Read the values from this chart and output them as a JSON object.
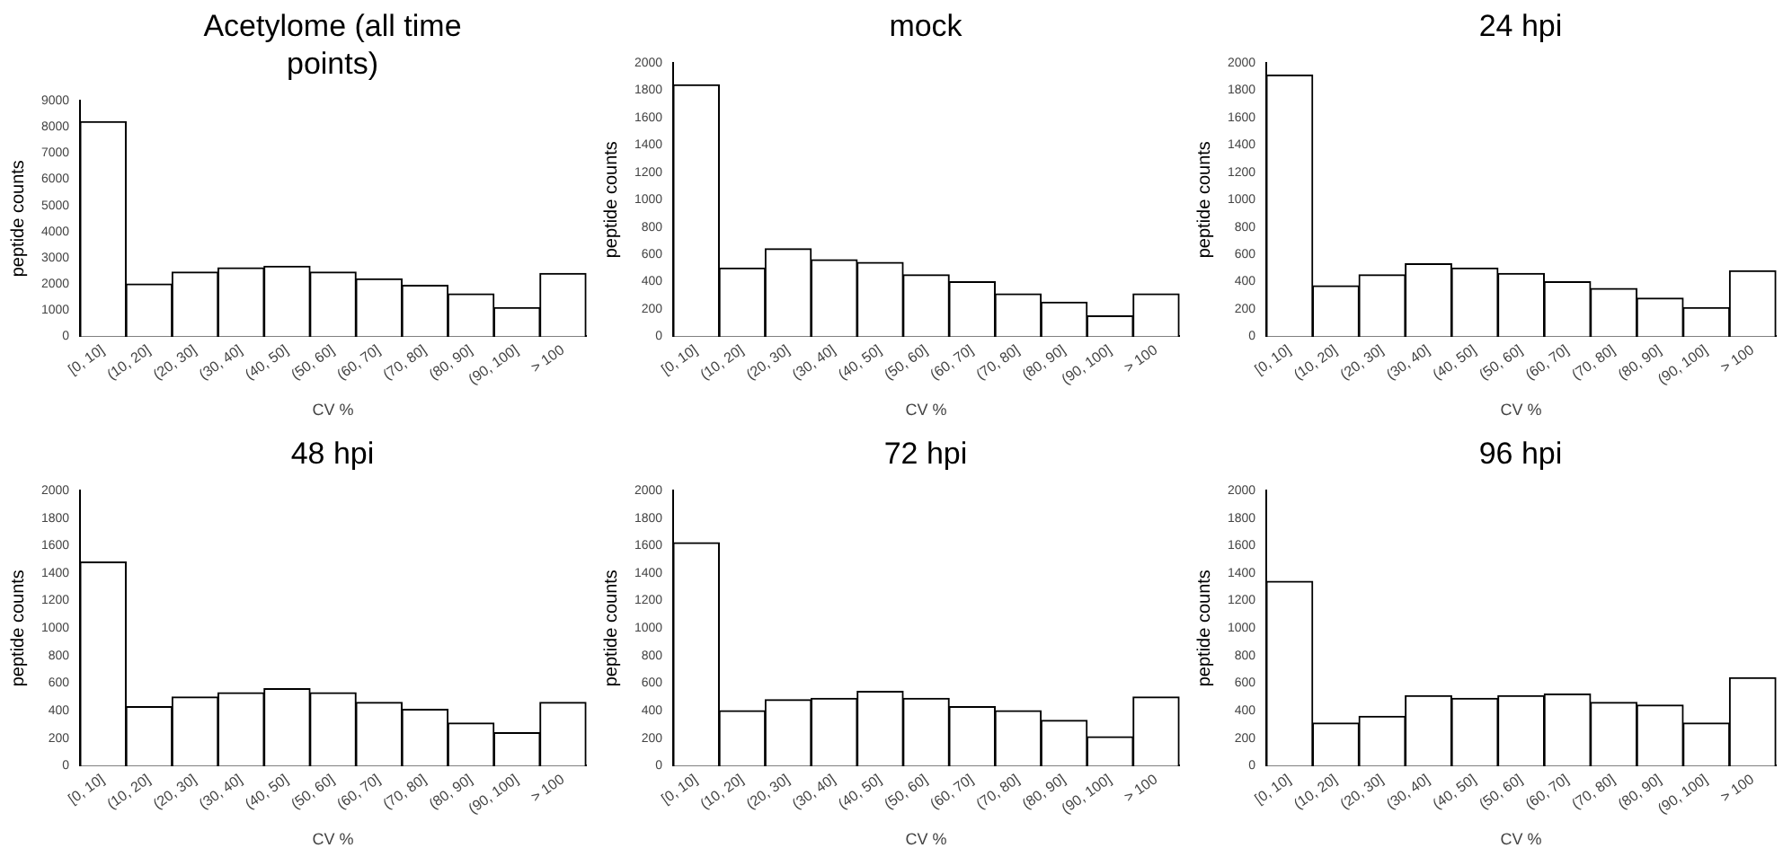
{
  "chart_data": [
    {
      "type": "bar",
      "title": "Acetylome (all time points)",
      "xlabel": "CV %",
      "ylabel": "peptide counts",
      "categories": [
        "[0, 10]",
        "(10, 20]",
        "(20, 30]",
        "(30, 40]",
        "(40, 50]",
        "(50, 60]",
        "(60, 70]",
        "(70, 80]",
        "(80, 90]",
        "(90, 100]",
        "> 100"
      ],
      "color": "#ffffff",
      "grid": false,
      "legend": false,
      "ylim": [
        0,
        9000
      ],
      "yticks": [
        0,
        1000,
        2000,
        3000,
        4000,
        5000,
        6000,
        7000,
        8000,
        9000
      ],
      "values": [
        8200,
        2000,
        2450,
        2620,
        2680,
        2450,
        2200,
        1950,
        1620,
        1100,
        2400
      ]
    },
    {
      "type": "bar",
      "title": "mock",
      "xlabel": "CV %",
      "ylabel": "peptide counts",
      "categories": [
        "[0, 10]",
        "(10, 20]",
        "(20, 30]",
        "(30, 40]",
        "(40, 50]",
        "(50, 60]",
        "(60, 70]",
        "(70, 80]",
        "(80, 90]",
        "(90, 100]",
        "> 100"
      ],
      "color": "#ffffff",
      "grid": false,
      "legend": false,
      "ylim": [
        0,
        2000
      ],
      "yticks": [
        0,
        200,
        400,
        600,
        800,
        1000,
        1200,
        1400,
        1600,
        1800,
        2000
      ],
      "values": [
        1840,
        500,
        640,
        560,
        540,
        450,
        400,
        310,
        250,
        150,
        310
      ]
    },
    {
      "type": "bar",
      "title": "24 hpi",
      "xlabel": "CV %",
      "ylabel": "peptide counts",
      "categories": [
        "[0, 10]",
        "(10, 20]",
        "(20, 30]",
        "(30, 40]",
        "(40, 50]",
        "(50, 60]",
        "(60, 70]",
        "(70, 80]",
        "(80, 90]",
        "(90, 100]",
        "> 100"
      ],
      "color": "#ffffff",
      "grid": false,
      "legend": false,
      "ylim": [
        0,
        2000
      ],
      "yticks": [
        0,
        200,
        400,
        600,
        800,
        1000,
        1200,
        1400,
        1600,
        1800,
        2000
      ],
      "values": [
        1910,
        370,
        450,
        530,
        500,
        460,
        400,
        350,
        280,
        210,
        480
      ]
    },
    {
      "type": "bar",
      "title": "48 hpi",
      "xlabel": "CV %",
      "ylabel": "peptide counts",
      "categories": [
        "[0, 10]",
        "(10, 20]",
        "(20, 30]",
        "(30, 40]",
        "(40, 50]",
        "(50, 60]",
        "(60, 70]",
        "(70, 80]",
        "(80, 90]",
        "(90, 100]",
        "> 100"
      ],
      "color": "#ffffff",
      "grid": false,
      "legend": false,
      "ylim": [
        0,
        2000
      ],
      "yticks": [
        0,
        200,
        400,
        600,
        800,
        1000,
        1200,
        1400,
        1600,
        1800,
        2000
      ],
      "values": [
        1480,
        430,
        500,
        530,
        560,
        530,
        460,
        410,
        310,
        240,
        460
      ]
    },
    {
      "type": "bar",
      "title": "72 hpi",
      "xlabel": "CV %",
      "ylabel": "peptide counts",
      "categories": [
        "[0, 10]",
        "(10, 20]",
        "(20, 30]",
        "(30, 40]",
        "(40, 50]",
        "(50, 60]",
        "(60, 70]",
        "(70, 80]",
        "(80, 90]",
        "(90, 100]",
        "> 100"
      ],
      "color": "#ffffff",
      "grid": false,
      "legend": false,
      "ylim": [
        0,
        2000
      ],
      "yticks": [
        0,
        200,
        400,
        600,
        800,
        1000,
        1200,
        1400,
        1600,
        1800,
        2000
      ],
      "values": [
        1620,
        400,
        480,
        490,
        540,
        490,
        430,
        400,
        330,
        210,
        500
      ]
    },
    {
      "type": "bar",
      "title": "96 hpi",
      "xlabel": "CV %",
      "ylabel": "peptide counts",
      "categories": [
        "[0, 10]",
        "(10, 20]",
        "(20, 30]",
        "(30, 40]",
        "(40, 50]",
        "(50, 60]",
        "(60, 70]",
        "(70, 80]",
        "(80, 90]",
        "(90, 100]",
        "> 100"
      ],
      "color": "#ffffff",
      "grid": false,
      "legend": false,
      "ylim": [
        0,
        2000
      ],
      "yticks": [
        0,
        200,
        400,
        600,
        800,
        1000,
        1200,
        1400,
        1600,
        1800,
        2000
      ],
      "values": [
        1340,
        310,
        360,
        510,
        490,
        510,
        520,
        460,
        440,
        310,
        640
      ]
    }
  ]
}
